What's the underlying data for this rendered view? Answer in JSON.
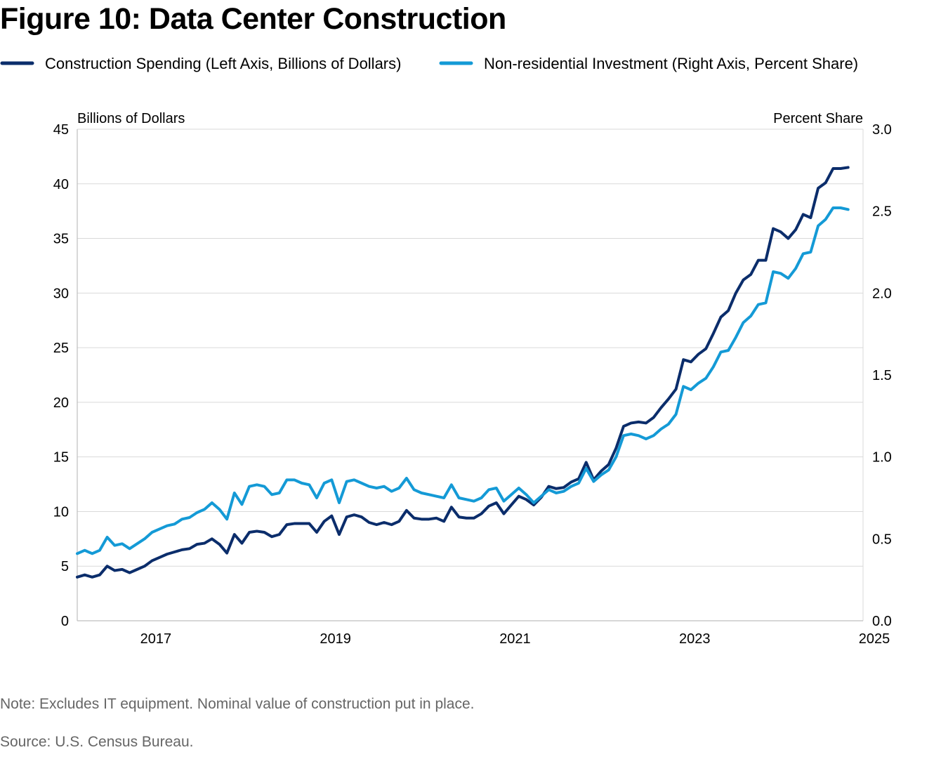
{
  "chart_data": {
    "type": "line",
    "title": "Figure 10: Data Center Construction",
    "y_left_label": "Billions of Dollars",
    "y_right_label": "Percent Share",
    "y_left_lim": [
      0,
      45
    ],
    "y_left_ticks": [
      "0",
      "5",
      "10",
      "15",
      "20",
      "25",
      "30",
      "35",
      "40",
      "45"
    ],
    "y_right_lim": [
      0,
      3
    ],
    "y_right_ticks": [
      "0.0",
      "0.5",
      "1.0",
      "1.5",
      "2.0",
      "2.5",
      "3.0"
    ],
    "x_lim": [
      "2016-08",
      "2025-05"
    ],
    "x_ticks": [
      "2017",
      "2019",
      "2021",
      "2023",
      "2025"
    ],
    "grid": true,
    "legend_position": "top-left",
    "series": [
      {
        "name": "Construction Spending (Left Axis, Billions of Dollars)",
        "axis": "left",
        "color": "#0b2d6b",
        "start": "2016-08",
        "frequency": "monthly",
        "values": [
          4.0,
          4.2,
          4.0,
          4.2,
          5.0,
          4.6,
          4.7,
          4.4,
          4.7,
          5.0,
          5.5,
          5.8,
          6.1,
          6.3,
          6.5,
          6.6,
          7.0,
          7.1,
          7.5,
          7.0,
          6.2,
          7.9,
          7.1,
          8.1,
          8.2,
          8.1,
          7.7,
          7.9,
          8.8,
          8.9,
          8.9,
          8.9,
          8.1,
          9.1,
          9.6,
          7.9,
          9.5,
          9.7,
          9.5,
          9.0,
          8.8,
          9.0,
          8.8,
          9.1,
          10.1,
          9.4,
          9.3,
          9.3,
          9.4,
          9.1,
          10.4,
          9.5,
          9.4,
          9.4,
          9.8,
          10.5,
          10.8,
          9.8,
          10.6,
          11.4,
          11.1,
          10.6,
          11.3,
          12.3,
          12.1,
          12.2,
          12.7,
          13.0,
          14.5,
          12.9,
          13.7,
          14.3,
          15.8,
          17.8,
          18.1,
          18.2,
          18.1,
          18.6,
          19.5,
          20.3,
          21.2,
          23.9,
          23.7,
          24.4,
          24.9,
          26.3,
          27.8,
          28.4,
          30.0,
          31.2,
          31.7,
          33.0,
          33.0,
          35.9,
          35.6,
          35.0,
          35.8,
          37.2,
          36.9,
          39.6,
          40.1,
          41.4,
          41.4,
          41.5
        ]
      },
      {
        "name": "Non-residential Investment (Right Axis, Percent Share)",
        "axis": "right",
        "color": "#149ad6",
        "start": "2016-08",
        "frequency": "monthly",
        "values": [
          0.41,
          0.43,
          0.41,
          0.43,
          0.51,
          0.46,
          0.47,
          0.44,
          0.47,
          0.5,
          0.54,
          0.56,
          0.58,
          0.59,
          0.62,
          0.63,
          0.66,
          0.68,
          0.72,
          0.68,
          0.62,
          0.78,
          0.71,
          0.82,
          0.83,
          0.82,
          0.77,
          0.78,
          0.86,
          0.86,
          0.84,
          0.83,
          0.75,
          0.84,
          0.86,
          0.72,
          0.85,
          0.86,
          0.84,
          0.82,
          0.81,
          0.82,
          0.79,
          0.81,
          0.87,
          0.8,
          0.78,
          0.77,
          0.76,
          0.75,
          0.83,
          0.75,
          0.74,
          0.73,
          0.75,
          0.8,
          0.81,
          0.73,
          0.77,
          0.81,
          0.77,
          0.72,
          0.76,
          0.8,
          0.78,
          0.79,
          0.82,
          0.84,
          0.93,
          0.85,
          0.89,
          0.92,
          1.0,
          1.13,
          1.14,
          1.13,
          1.11,
          1.13,
          1.17,
          1.2,
          1.26,
          1.43,
          1.41,
          1.45,
          1.48,
          1.55,
          1.64,
          1.65,
          1.73,
          1.82,
          1.86,
          1.93,
          1.94,
          2.13,
          2.12,
          2.09,
          2.15,
          2.24,
          2.25,
          2.41,
          2.45,
          2.52,
          2.52,
          2.51
        ]
      }
    ]
  },
  "footer": {
    "note": "Note: Excludes IT equipment. Nominal value of construction put in place.",
    "source": "Source: U.S. Census Bureau."
  }
}
